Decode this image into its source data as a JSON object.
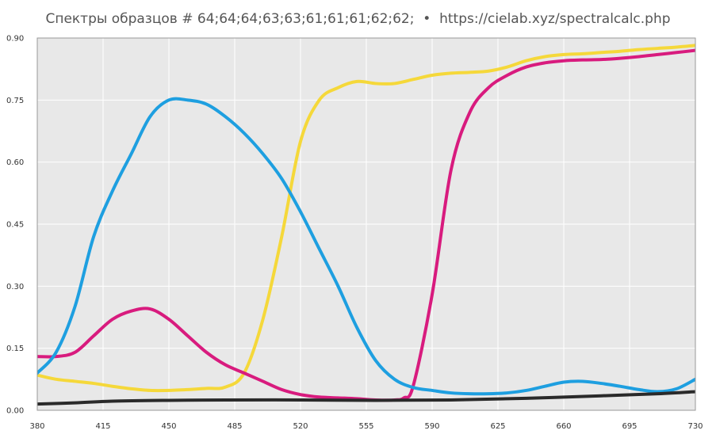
{
  "chart_data": {
    "type": "line",
    "title": "Спектры образцов # 64;64;64;63;63;61;61;61;62;62;  •  https://cielab.xyz/spectralcalc.php",
    "xlabel": "",
    "ylabel": "",
    "xlim": [
      380,
      730
    ],
    "ylim": [
      0,
      0.9
    ],
    "x_ticks": [
      "380",
      "415",
      "450",
      "485",
      "520",
      "555",
      "590",
      "625",
      "660",
      "695",
      "730"
    ],
    "y_ticks": [
      "0.00",
      "0.15",
      "0.30",
      "0.45",
      "0.60",
      "0.75",
      "0.90"
    ],
    "grid": true,
    "legend": "none",
    "colors": {
      "background": "#e8e8e8",
      "grid": "#ffffff",
      "frame": "#999999"
    },
    "series": [
      {
        "color": "#f5d83a",
        "x": [
          380,
          390,
          400,
          410,
          420,
          430,
          440,
          450,
          460,
          470,
          480,
          490,
          500,
          510,
          520,
          530,
          540,
          550,
          560,
          570,
          580,
          590,
          600,
          610,
          620,
          630,
          640,
          650,
          660,
          670,
          680,
          690,
          700,
          710,
          720,
          730
        ],
        "y": [
          0.085,
          0.075,
          0.07,
          0.065,
          0.058,
          0.052,
          0.048,
          0.048,
          0.05,
          0.053,
          0.056,
          0.09,
          0.22,
          0.42,
          0.65,
          0.75,
          0.78,
          0.795,
          0.79,
          0.79,
          0.8,
          0.81,
          0.815,
          0.817,
          0.82,
          0.83,
          0.845,
          0.855,
          0.86,
          0.862,
          0.865,
          0.868,
          0.872,
          0.875,
          0.878,
          0.882
        ]
      },
      {
        "color": "#d81b7e",
        "x": [
          380,
          390,
          400,
          410,
          420,
          430,
          440,
          450,
          460,
          470,
          480,
          490,
          500,
          510,
          520,
          530,
          540,
          550,
          560,
          570,
          575,
          580,
          590,
          600,
          610,
          620,
          630,
          640,
          650,
          660,
          670,
          680,
          690,
          700,
          710,
          720,
          730
        ],
        "y": [
          0.13,
          0.13,
          0.14,
          0.18,
          0.22,
          0.24,
          0.245,
          0.22,
          0.18,
          0.14,
          0.11,
          0.09,
          0.07,
          0.05,
          0.038,
          0.032,
          0.03,
          0.028,
          0.025,
          0.025,
          0.03,
          0.06,
          0.28,
          0.58,
          0.72,
          0.78,
          0.81,
          0.83,
          0.84,
          0.845,
          0.847,
          0.848,
          0.851,
          0.855,
          0.86,
          0.865,
          0.87
        ]
      },
      {
        "color": "#1e9fe0",
        "x": [
          380,
          390,
          400,
          410,
          420,
          430,
          440,
          450,
          460,
          470,
          480,
          490,
          500,
          510,
          520,
          530,
          540,
          550,
          560,
          570,
          580,
          590,
          600,
          610,
          620,
          630,
          640,
          650,
          660,
          670,
          680,
          690,
          700,
          710,
          720,
          730
        ],
        "y": [
          0.09,
          0.14,
          0.25,
          0.42,
          0.53,
          0.62,
          0.71,
          0.75,
          0.75,
          0.74,
          0.71,
          0.67,
          0.62,
          0.56,
          0.48,
          0.39,
          0.3,
          0.2,
          0.12,
          0.075,
          0.055,
          0.048,
          0.042,
          0.04,
          0.04,
          0.042,
          0.048,
          0.058,
          0.068,
          0.07,
          0.065,
          0.058,
          0.05,
          0.045,
          0.052,
          0.075
        ]
      },
      {
        "color": "#2a2a2a",
        "x": [
          380,
          400,
          420,
          450,
          480,
          520,
          560,
          600,
          640,
          680,
          710,
          730
        ],
        "y": [
          0.015,
          0.018,
          0.022,
          0.024,
          0.025,
          0.025,
          0.024,
          0.025,
          0.029,
          0.035,
          0.04,
          0.045
        ]
      }
    ]
  }
}
